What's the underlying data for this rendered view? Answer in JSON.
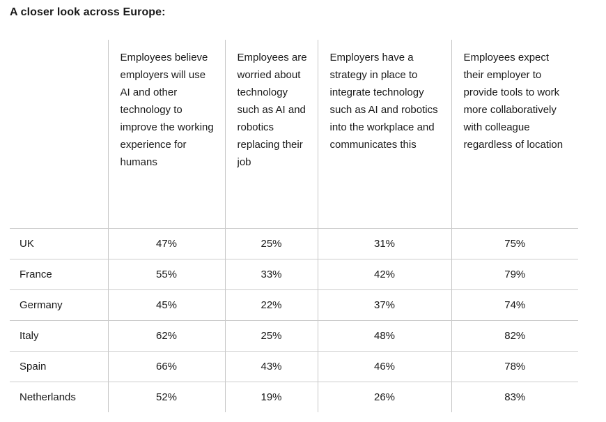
{
  "title": "A closer look across Europe:",
  "table": {
    "columns": [
      "Employees believe employers will use AI and other technology to improve the working experience for humans",
      "Employees are worried about technology such as AI and robotics replacing their job",
      "Employers have a strategy in place to integrate technology such as AI and robotics into the workplace and communicates this",
      "Employees expect their employer to provide tools to work more collaboratively with colleague regardless of location"
    ],
    "rows": [
      {
        "country": "UK",
        "values": [
          "47%",
          "25%",
          "31%",
          "75%"
        ]
      },
      {
        "country": "France",
        "values": [
          "55%",
          "33%",
          "42%",
          "79%"
        ]
      },
      {
        "country": "Germany",
        "values": [
          "45%",
          "22%",
          "37%",
          "74%"
        ]
      },
      {
        "country": "Italy",
        "values": [
          "62%",
          "25%",
          "48%",
          "82%"
        ]
      },
      {
        "country": "Spain",
        "values": [
          "66%",
          "43%",
          "46%",
          "78%"
        ]
      },
      {
        "country": "Netherlands",
        "values": [
          "52%",
          "19%",
          "26%",
          "83%"
        ]
      }
    ]
  }
}
